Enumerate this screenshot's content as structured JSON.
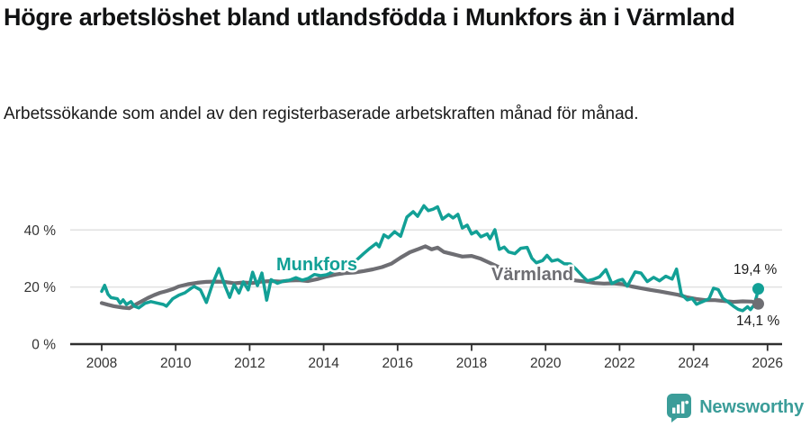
{
  "title": "Högre arbetslöshet bland utlandsfödda i Munkfors än i Värmland",
  "subtitle": "Arbetssökande som andel av den registerbaserade arbetskraften månad för månad.",
  "branding": {
    "logo_text": "Newsworthy",
    "logo_color": "#3B9D99"
  },
  "chart_data": {
    "type": "line",
    "unit": "%",
    "grid": "horizontal",
    "legend_position": "inline-labels",
    "xlim": [
      2007.3,
      2026.6
    ],
    "ylim": [
      0,
      52
    ],
    "x_ticks": [
      2008,
      2010,
      2012,
      2014,
      2016,
      2018,
      2020,
      2022,
      2024,
      2026
    ],
    "y_ticks": [
      {
        "value": 0,
        "label": "0 %"
      },
      {
        "value": 20,
        "label": "20 %"
      },
      {
        "value": 40,
        "label": "40 %"
      }
    ],
    "axis_color": "#2F2F2F",
    "gridline_color": "#E1E1E1",
    "series": [
      {
        "name": "Munkfors",
        "color": "#12A096",
        "end_label": "19,4 %",
        "last_value": 19.4,
        "points": [
          [
            2008.0,
            18.5
          ],
          [
            2008.08,
            20.6
          ],
          [
            2008.17,
            17.5
          ],
          [
            2008.25,
            16.3
          ],
          [
            2008.42,
            15.9
          ],
          [
            2008.5,
            14.3
          ],
          [
            2008.58,
            15.5
          ],
          [
            2008.67,
            13.9
          ],
          [
            2008.79,
            14.9
          ],
          [
            2008.88,
            13.3
          ],
          [
            2009.0,
            12.7
          ],
          [
            2009.17,
            14.3
          ],
          [
            2009.33,
            14.9
          ],
          [
            2009.5,
            14.4
          ],
          [
            2009.67,
            13.9
          ],
          [
            2009.75,
            13.3
          ],
          [
            2009.92,
            15.9
          ],
          [
            2010.08,
            17.1
          ],
          [
            2010.25,
            18.0
          ],
          [
            2010.42,
            19.6
          ],
          [
            2010.5,
            20.2
          ],
          [
            2010.67,
            19.0
          ],
          [
            2010.83,
            14.6
          ],
          [
            2011.0,
            21.2
          ],
          [
            2011.17,
            26.5
          ],
          [
            2011.33,
            20.5
          ],
          [
            2011.46,
            16.4
          ],
          [
            2011.58,
            20.8
          ],
          [
            2011.71,
            17.9
          ],
          [
            2011.83,
            21.8
          ],
          [
            2011.96,
            19.0
          ],
          [
            2012.08,
            25.2
          ],
          [
            2012.21,
            20.5
          ],
          [
            2012.33,
            24.9
          ],
          [
            2012.46,
            15.4
          ],
          [
            2012.58,
            22.6
          ],
          [
            2012.75,
            21.3
          ],
          [
            2012.92,
            22.1
          ],
          [
            2013.08,
            22.4
          ],
          [
            2013.25,
            23.3
          ],
          [
            2013.42,
            22.4
          ],
          [
            2013.58,
            23.0
          ],
          [
            2013.75,
            24.4
          ],
          [
            2013.92,
            24.0
          ],
          [
            2014.08,
            24.3
          ],
          [
            2014.25,
            25.4
          ],
          [
            2014.42,
            26.3
          ],
          [
            2014.58,
            27.2
          ],
          [
            2014.75,
            28.3
          ],
          [
            2014.92,
            29.8
          ],
          [
            2015.08,
            31.7
          ],
          [
            2015.25,
            33.6
          ],
          [
            2015.42,
            35.3
          ],
          [
            2015.5,
            34.1
          ],
          [
            2015.63,
            38.3
          ],
          [
            2015.75,
            37.3
          ],
          [
            2015.92,
            39.4
          ],
          [
            2016.08,
            37.8
          ],
          [
            2016.25,
            44.5
          ],
          [
            2016.42,
            46.4
          ],
          [
            2016.54,
            44.8
          ],
          [
            2016.71,
            48.5
          ],
          [
            2016.83,
            46.8
          ],
          [
            2016.96,
            47.3
          ],
          [
            2017.08,
            48.1
          ],
          [
            2017.21,
            43.8
          ],
          [
            2017.38,
            45.4
          ],
          [
            2017.5,
            44.2
          ],
          [
            2017.63,
            45.5
          ],
          [
            2017.75,
            40.7
          ],
          [
            2017.88,
            41.7
          ],
          [
            2018.0,
            38.6
          ],
          [
            2018.13,
            39.5
          ],
          [
            2018.25,
            37.6
          ],
          [
            2018.42,
            38.6
          ],
          [
            2018.5,
            36.9
          ],
          [
            2018.63,
            40.1
          ],
          [
            2018.75,
            33.2
          ],
          [
            2018.88,
            34.0
          ],
          [
            2019.0,
            32.3
          ],
          [
            2019.17,
            31.7
          ],
          [
            2019.33,
            33.6
          ],
          [
            2019.5,
            33.9
          ],
          [
            2019.63,
            30.1
          ],
          [
            2019.75,
            28.5
          ],
          [
            2019.92,
            29.3
          ],
          [
            2020.04,
            31.1
          ],
          [
            2020.17,
            29.1
          ],
          [
            2020.33,
            29.6
          ],
          [
            2020.5,
            28.2
          ],
          [
            2020.67,
            28.1
          ],
          [
            2020.83,
            26.2
          ],
          [
            2021.0,
            23.8
          ],
          [
            2021.13,
            22.2
          ],
          [
            2021.29,
            22.7
          ],
          [
            2021.46,
            23.6
          ],
          [
            2021.63,
            26.1
          ],
          [
            2021.79,
            21.2
          ],
          [
            2021.96,
            22.3
          ],
          [
            2022.08,
            22.7
          ],
          [
            2022.21,
            20.3
          ],
          [
            2022.42,
            25.3
          ],
          [
            2022.58,
            24.9
          ],
          [
            2022.75,
            21.9
          ],
          [
            2022.92,
            23.4
          ],
          [
            2023.08,
            22.2
          ],
          [
            2023.25,
            23.8
          ],
          [
            2023.42,
            22.8
          ],
          [
            2023.54,
            26.3
          ],
          [
            2023.67,
            17.5
          ],
          [
            2023.83,
            15.5
          ],
          [
            2023.96,
            16.0
          ],
          [
            2024.08,
            14.0
          ],
          [
            2024.25,
            14.9
          ],
          [
            2024.42,
            15.9
          ],
          [
            2024.54,
            19.6
          ],
          [
            2024.67,
            19.1
          ],
          [
            2024.79,
            16.1
          ],
          [
            2024.92,
            14.9
          ],
          [
            2025.08,
            13.3
          ],
          [
            2025.21,
            12.2
          ],
          [
            2025.33,
            11.7
          ],
          [
            2025.46,
            13.1
          ],
          [
            2025.54,
            12.1
          ],
          [
            2025.63,
            13.6
          ],
          [
            2025.7,
            16.5
          ],
          [
            2025.75,
            19.4
          ]
        ]
      },
      {
        "name": "Värmland",
        "color": "#6E6E73",
        "end_label": "14,1 %",
        "last_value": 14.1,
        "points": [
          [
            2008.0,
            14.4
          ],
          [
            2008.17,
            13.8
          ],
          [
            2008.33,
            13.3
          ],
          [
            2008.58,
            12.8
          ],
          [
            2008.75,
            12.6
          ],
          [
            2008.92,
            13.9
          ],
          [
            2009.08,
            15.0
          ],
          [
            2009.25,
            16.2
          ],
          [
            2009.42,
            17.2
          ],
          [
            2009.58,
            18.0
          ],
          [
            2009.75,
            18.6
          ],
          [
            2009.92,
            19.3
          ],
          [
            2010.08,
            20.2
          ],
          [
            2010.33,
            21.0
          ],
          [
            2010.58,
            21.5
          ],
          [
            2010.83,
            21.8
          ],
          [
            2011.08,
            21.9
          ],
          [
            2011.33,
            21.8
          ],
          [
            2011.58,
            21.3
          ],
          [
            2011.83,
            21.6
          ],
          [
            2012.08,
            21.4
          ],
          [
            2012.33,
            21.9
          ],
          [
            2012.58,
            22.1
          ],
          [
            2012.83,
            21.9
          ],
          [
            2013.08,
            22.3
          ],
          [
            2013.33,
            22.4
          ],
          [
            2013.58,
            22.1
          ],
          [
            2013.83,
            22.8
          ],
          [
            2014.08,
            23.7
          ],
          [
            2014.33,
            24.4
          ],
          [
            2014.58,
            24.9
          ],
          [
            2014.83,
            25.1
          ],
          [
            2015.08,
            25.6
          ],
          [
            2015.33,
            26.2
          ],
          [
            2015.58,
            27.0
          ],
          [
            2015.83,
            28.2
          ],
          [
            2016.08,
            30.3
          ],
          [
            2016.33,
            32.2
          ],
          [
            2016.58,
            33.4
          ],
          [
            2016.75,
            34.3
          ],
          [
            2016.92,
            33.2
          ],
          [
            2017.08,
            33.8
          ],
          [
            2017.25,
            32.3
          ],
          [
            2017.5,
            31.5
          ],
          [
            2017.75,
            30.7
          ],
          [
            2018.0,
            30.9
          ],
          [
            2018.25,
            29.9
          ],
          [
            2018.5,
            28.4
          ],
          [
            2018.75,
            26.9
          ],
          [
            2019.0,
            25.9
          ],
          [
            2019.17,
            25.1
          ],
          [
            2019.33,
            25.4
          ],
          [
            2019.58,
            24.6
          ],
          [
            2019.83,
            24.1
          ],
          [
            2020.08,
            23.6
          ],
          [
            2020.33,
            23.2
          ],
          [
            2020.58,
            22.8
          ],
          [
            2020.83,
            22.3
          ],
          [
            2021.08,
            21.9
          ],
          [
            2021.33,
            21.4
          ],
          [
            2021.58,
            21.2
          ],
          [
            2021.83,
            21.3
          ],
          [
            2022.08,
            21.0
          ],
          [
            2022.33,
            20.2
          ],
          [
            2022.58,
            19.6
          ],
          [
            2022.83,
            19.0
          ],
          [
            2023.08,
            18.5
          ],
          [
            2023.33,
            17.9
          ],
          [
            2023.58,
            17.3
          ],
          [
            2023.83,
            16.4
          ],
          [
            2024.08,
            15.8
          ],
          [
            2024.33,
            15.4
          ],
          [
            2024.58,
            15.4
          ],
          [
            2024.83,
            15.1
          ],
          [
            2025.08,
            14.8
          ],
          [
            2025.33,
            15.0
          ],
          [
            2025.58,
            14.9
          ],
          [
            2025.75,
            14.1
          ]
        ]
      }
    ]
  }
}
